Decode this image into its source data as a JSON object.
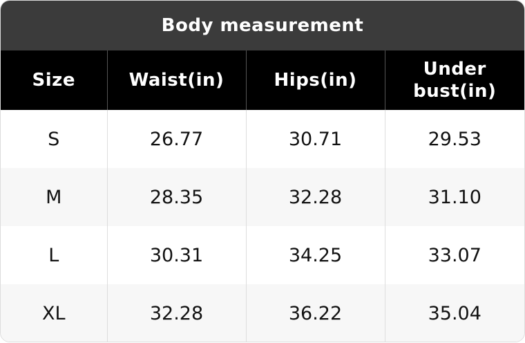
{
  "header": {
    "title": "Body measurement"
  },
  "table": {
    "columns": [
      "Size",
      "Waist(in)",
      "Hips(in)",
      "Under bust(in)"
    ],
    "rows": [
      [
        "S",
        "26.77",
        "30.71",
        "29.53"
      ],
      [
        "M",
        "28.35",
        "32.28",
        "31.10"
      ],
      [
        "L",
        "30.31",
        "34.25",
        "33.07"
      ],
      [
        "XL",
        "32.28",
        "36.22",
        "35.04"
      ]
    ]
  }
}
